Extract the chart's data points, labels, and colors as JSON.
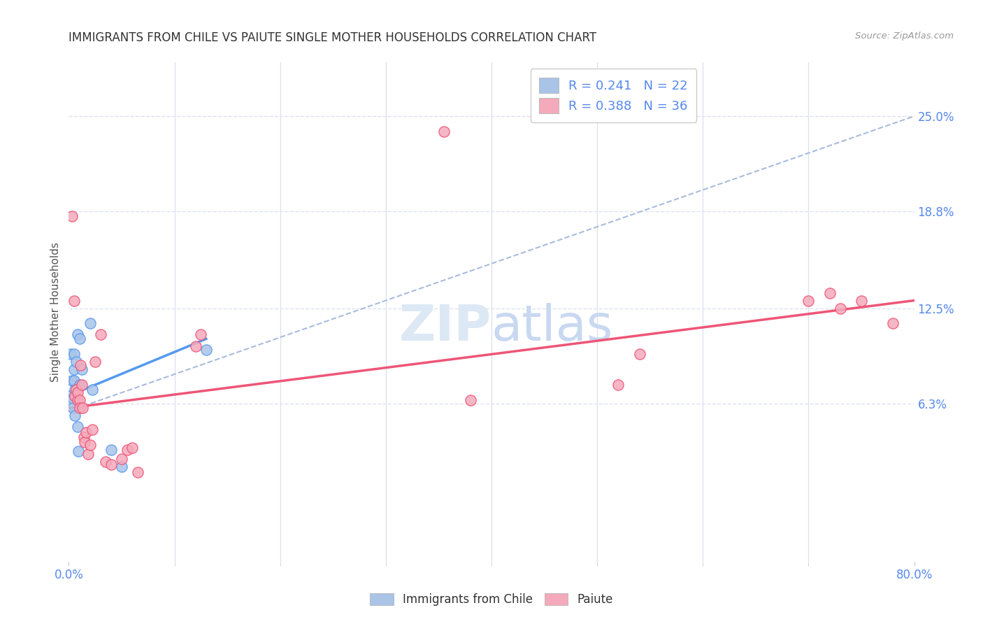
{
  "title": "IMMIGRANTS FROM CHILE VS PAIUTE SINGLE MOTHER HOUSEHOLDS CORRELATION CHART",
  "source": "Source: ZipAtlas.com",
  "ylabel_label": "Single Mother Households",
  "xmin": 0.0,
  "xmax": 0.8,
  "ymin": -0.04,
  "ymax": 0.285,
  "ytick_vals": [
    0.063,
    0.125,
    0.188,
    0.25
  ],
  "ytick_labels": [
    "6.3%",
    "12.5%",
    "18.8%",
    "25.0%"
  ],
  "xtick_vals": [
    0.0,
    0.8
  ],
  "xtick_labels": [
    "0.0%",
    "80.0%"
  ],
  "xtick_minor_vals": [
    0.1,
    0.2,
    0.3,
    0.4,
    0.5,
    0.6,
    0.7
  ],
  "chile_color": "#aac4e8",
  "paiute_color": "#f4aabb",
  "chile_line_color": "#5599ee",
  "paiute_line_color": "#ee5577",
  "dashed_line_color": "#aabbdd",
  "legend_label1": "R = 0.241   N = 22",
  "legend_label2": "R = 0.388   N = 36",
  "bottom_legend1": "Immigrants from Chile",
  "bottom_legend2": "Paiute",
  "chile_points_x": [
    0.001,
    0.002,
    0.003,
    0.004,
    0.004,
    0.005,
    0.005,
    0.005,
    0.006,
    0.006,
    0.007,
    0.008,
    0.008,
    0.009,
    0.01,
    0.01,
    0.012,
    0.02,
    0.022,
    0.04,
    0.05,
    0.13
  ],
  "chile_points_y": [
    0.068,
    0.095,
    0.078,
    0.066,
    0.06,
    0.095,
    0.085,
    0.078,
    0.072,
    0.055,
    0.09,
    0.108,
    0.048,
    0.032,
    0.105,
    0.075,
    0.085,
    0.115,
    0.072,
    0.033,
    0.022,
    0.098
  ],
  "paiute_points_x": [
    0.003,
    0.005,
    0.006,
    0.007,
    0.008,
    0.008,
    0.01,
    0.01,
    0.011,
    0.012,
    0.013,
    0.014,
    0.015,
    0.016,
    0.018,
    0.02,
    0.022,
    0.025,
    0.03,
    0.035,
    0.04,
    0.05,
    0.055,
    0.06,
    0.065,
    0.12,
    0.125,
    0.355,
    0.38,
    0.52,
    0.54,
    0.7,
    0.72,
    0.73,
    0.75,
    0.78
  ],
  "paiute_points_y": [
    0.185,
    0.13,
    0.068,
    0.072,
    0.065,
    0.07,
    0.065,
    0.06,
    0.088,
    0.075,
    0.06,
    0.041,
    0.038,
    0.044,
    0.03,
    0.036,
    0.046,
    0.09,
    0.108,
    0.025,
    0.023,
    0.027,
    0.033,
    0.034,
    0.018,
    0.1,
    0.108,
    0.24,
    0.065,
    0.075,
    0.095,
    0.13,
    0.135,
    0.125,
    0.13,
    0.115
  ],
  "chile_trend_x": [
    0.0,
    0.13
  ],
  "chile_trend_y": [
    0.068,
    0.105
  ],
  "paiute_trend_x": [
    0.0,
    0.8
  ],
  "paiute_trend_y": [
    0.06,
    0.13
  ],
  "dashed_trend_x": [
    0.0,
    0.8
  ],
  "dashed_trend_y": [
    0.058,
    0.25
  ],
  "background_color": "#ffffff",
  "grid_color": "#dde2ee"
}
